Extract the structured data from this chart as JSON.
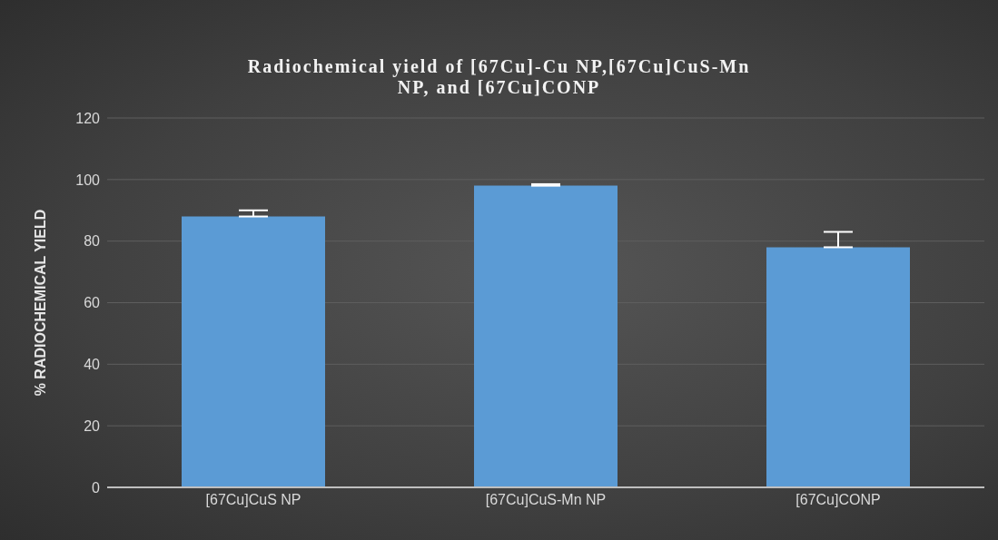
{
  "chart_data": {
    "type": "bar",
    "title": "Radiochemical yield of [67Cu]-Cu NP,[67Cu]CuS-Mn NP, and [67Cu]CONP",
    "ylabel": "% RADIOCHEMICAL YIELD",
    "categories": [
      "[67Cu]CuS NP",
      "[67Cu]CuS-Mn NP",
      "[67Cu]CONP"
    ],
    "series": [
      {
        "color": "#5b9bd5",
        "values": [
          88,
          98,
          78
        ],
        "errors": [
          [
            88,
            90
          ],
          [
            98,
            98.5
          ],
          [
            78,
            83
          ]
        ]
      }
    ],
    "ylim": [
      0,
      120
    ],
    "yticks": [
      0,
      20,
      40,
      60,
      80,
      100,
      120
    ],
    "grid": "y",
    "legend": false
  }
}
